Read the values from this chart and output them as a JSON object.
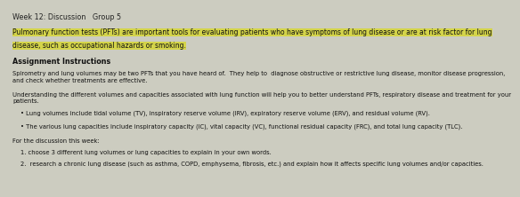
{
  "bg_color": "#ccccc0",
  "title": "Week 12: Discussion   Group 5",
  "title_fontsize": 5.8,
  "highlight_line1": "Pulmonary function tests (PFTs) are important tools for evaluating patients who have symptoms of lung disease or are at risk factor for lung",
  "highlight_line2": "disease, such as occupational hazards or smoking.",
  "highlight_color": "#d4d44a",
  "highlight_fontsize": 5.5,
  "section_header": "Assignment Instructions",
  "section_header_fontsize": 5.8,
  "body_blocks": [
    "Spirometry and lung volumes may be two PFTs that you have heard of.  They help to  diagnose obstructive or restrictive lung disease, monitor disease progression,\nand check whether treatments are effective.",
    "Understanding the different volumes and capacities associated with lung function will help you to better understand PFTs, respiratory disease and treatment for your\npatients."
  ],
  "bullet1": "Lung volumes include tidal volume (TV), inspiratory reserve volume (IRV), expiratory reserve volume (ERV), and residual volume (RV).",
  "bullet2": "The various lung capacities include inspiratory capacity (IC), vital capacity (VC), functional residual capacity (FRC), and total lung capacity (TLC).",
  "footer_header": "For the discussion this week:",
  "footer_line1": "1. choose 3 different lung volumes or lung capacities to explain in your own words.",
  "footer_line2": "2.  research a chronic lung disease (such as asthma, COPD, emphysema, fibrosis, etc.) and explain how it affects specific lung volumes and/or capacities.",
  "body_fontsize": 4.9,
  "lmargin": 0.008,
  "lmargin_bullet": 0.025
}
